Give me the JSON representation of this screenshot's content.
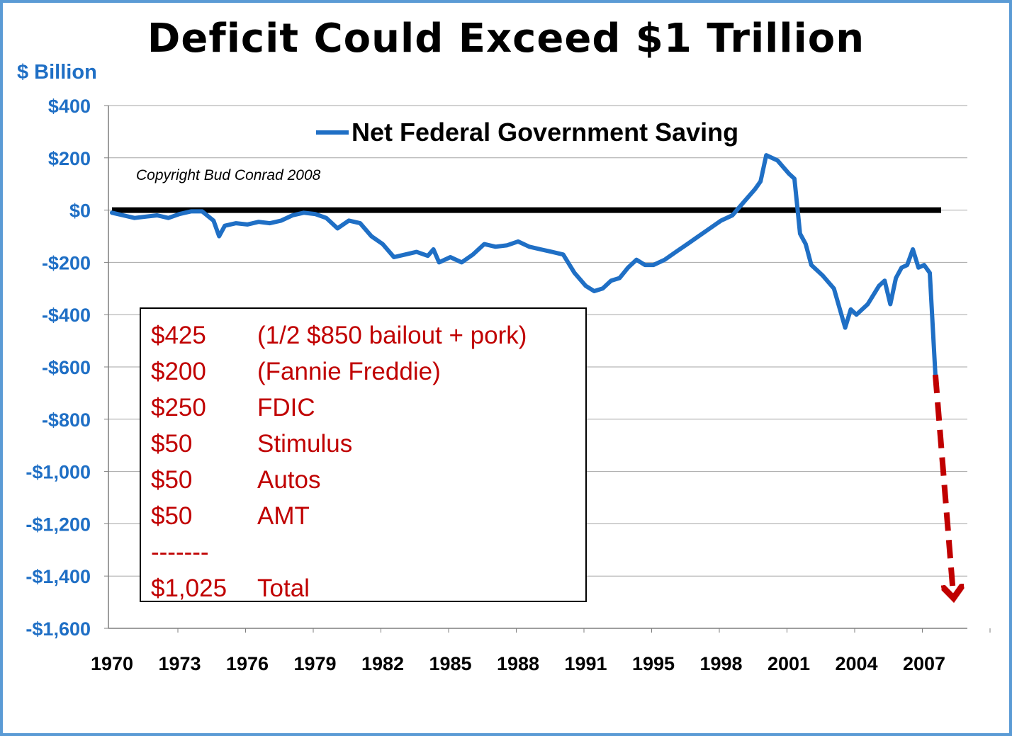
{
  "chart_data": {
    "type": "line",
    "title": "Deficit Could Exceed $1 Trillion",
    "ylabel": "$ Billion",
    "ylim": [
      -1600,
      400
    ],
    "yticks": [
      400,
      200,
      0,
      -200,
      -400,
      -600,
      -800,
      -1000,
      -1200,
      -1400,
      -1600
    ],
    "ytick_labels": [
      "$400",
      "$200",
      "$0",
      "-$200",
      "-$400",
      "-$600",
      "-$800",
      "-$1,000",
      "-$1,200",
      "-$1,400",
      "-$1,600"
    ],
    "xtick_labels": [
      "1970",
      "1973",
      "1976",
      "1979",
      "1982",
      "1985",
      "1988",
      "1991",
      "1995",
      "1998",
      "2001",
      "2004",
      "2007"
    ],
    "grid": "horizontal",
    "legend_position": "top-center",
    "series": [
      {
        "name": "Net Federal Government Saving",
        "color": "#1f6fc5",
        "x": [
          1970.0,
          1970.5,
          1971.0,
          1971.5,
          1972.0,
          1972.5,
          1973.0,
          1973.5,
          1974.0,
          1974.5,
          1974.75,
          1975.0,
          1975.5,
          1976.0,
          1976.5,
          1977.0,
          1977.5,
          1978.0,
          1978.5,
          1979.0,
          1979.5,
          1980.0,
          1980.5,
          1981.0,
          1981.5,
          1982.0,
          1982.5,
          1983.0,
          1983.5,
          1984.0,
          1984.25,
          1984.5,
          1985.0,
          1985.5,
          1986.0,
          1986.5,
          1987.0,
          1987.5,
          1988.0,
          1988.5,
          1989.0,
          1989.5,
          1990.0,
          1990.5,
          1991.0,
          1991.5,
          1992.0,
          1992.5,
          1993.0,
          1993.5,
          1994.0,
          1994.5,
          1995.0,
          1995.5,
          1996.0,
          1996.5,
          1997.0,
          1997.5,
          1998.0,
          1998.5,
          1999.0,
          1999.5,
          1999.75,
          2000.0,
          2000.5,
          2000.75,
          2001.0,
          2001.25,
          2001.5,
          2001.75,
          2002.0,
          2002.5,
          2003.0,
          2003.5,
          2003.75,
          2004.0,
          2004.5,
          2005.0,
          2005.25,
          2005.5,
          2005.75,
          2006.0,
          2006.25,
          2006.5,
          2006.75,
          2007.0,
          2007.25,
          2007.5
        ],
        "values": [
          -10,
          -20,
          -30,
          -25,
          -20,
          -30,
          -15,
          -5,
          -5,
          -40,
          -100,
          -60,
          -50,
          -55,
          -45,
          -50,
          -40,
          -20,
          -10,
          -15,
          -30,
          -70,
          -40,
          -50,
          -100,
          -130,
          -180,
          -170,
          -160,
          -175,
          -150,
          -200,
          -180,
          -200,
          -170,
          -130,
          -140,
          -135,
          -120,
          -140,
          -150,
          -160,
          -170,
          -240,
          -290,
          -310,
          -300,
          -270,
          -260,
          -220,
          -190,
          -210,
          -210,
          -190,
          -160,
          -130,
          -100,
          -70,
          -40,
          -20,
          30,
          80,
          110,
          210,
          190,
          165,
          140,
          120,
          -90,
          -130,
          -210,
          -250,
          -300,
          -450,
          -380,
          -400,
          -360,
          -290,
          -270,
          -360,
          -260,
          -220,
          -210,
          -150,
          -220,
          -210,
          -240,
          -630
        ]
      }
    ],
    "projection": {
      "from": {
        "x": 2007.5,
        "y": -630
      },
      "to": {
        "x": 2008.3,
        "y": -1480
      },
      "color": "#c00000",
      "style": "dashed-arrow"
    },
    "zero_line_color": "#000000",
    "annotations": [
      "Copyright Bud Conrad  2008"
    ]
  },
  "legend_label": "Net Federal Government Saving",
  "copyright": "Copyright Bud Conrad  2008",
  "breakdown": [
    {
      "amount": "$425",
      "item": "(1/2 $850 bailout + pork)"
    },
    {
      "amount": "$200",
      "item": "(Fannie Freddie)"
    },
    {
      "amount": "$250",
      "item": "FDIC"
    },
    {
      "amount": "$50",
      "item": "Stimulus"
    },
    {
      "amount": "$50",
      "item": "Autos"
    },
    {
      "amount": "$50",
      "item": "AMT"
    },
    {
      "amount": "-------",
      "item": ""
    },
    {
      "amount": "$1,025",
      "item": "Total"
    }
  ],
  "breakdown_color": "#c00000",
  "frame_color": "#5b9bd5"
}
